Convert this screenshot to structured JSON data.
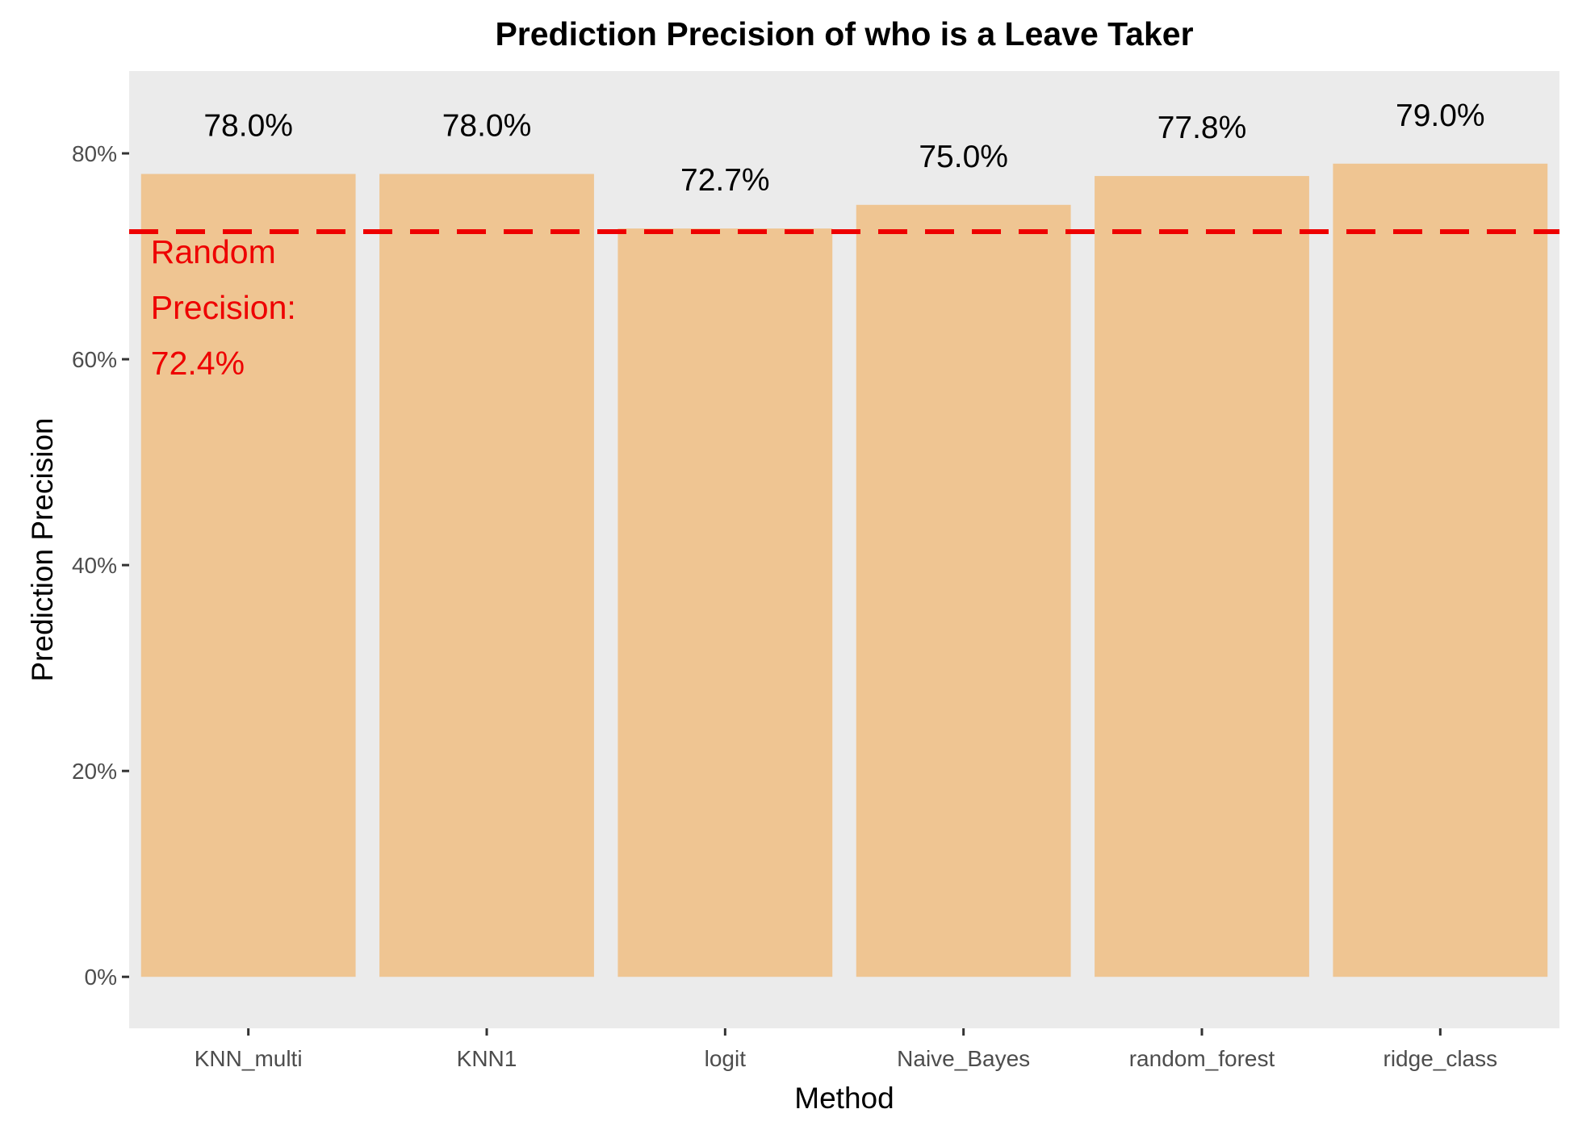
{
  "chart_data": {
    "type": "bar",
    "title": "Prediction Precision of who is a Leave Taker",
    "xlabel": "Method",
    "ylabel": "Prediction Precision",
    "categories": [
      "KNN_multi",
      "KNN1",
      "logit",
      "Naive_Bayes",
      "random_forest",
      "ridge_class"
    ],
    "values": [
      0.78,
      0.78,
      0.727,
      0.75,
      0.778,
      0.79
    ],
    "data_labels": [
      "78.0%",
      "78.0%",
      "72.7%",
      "75.0%",
      "77.8%",
      "79.0%"
    ],
    "ylim": [
      -0.05,
      0.88
    ],
    "yticks": [
      0,
      0.2,
      0.4,
      0.6,
      0.8
    ],
    "ytick_labels": [
      "0%",
      "20%",
      "40%",
      "60%",
      "80%"
    ],
    "grid": false,
    "reference_line": {
      "value": 0.724,
      "style": "dashed",
      "color": "#ee0000",
      "label_lines": [
        "Random",
        "Precision:",
        "72.4%"
      ]
    },
    "colors": {
      "bar": "#efc592",
      "panel_background": "#ebebeb",
      "tick_text": "#4d4d4d",
      "reference": "#ee0000"
    }
  }
}
